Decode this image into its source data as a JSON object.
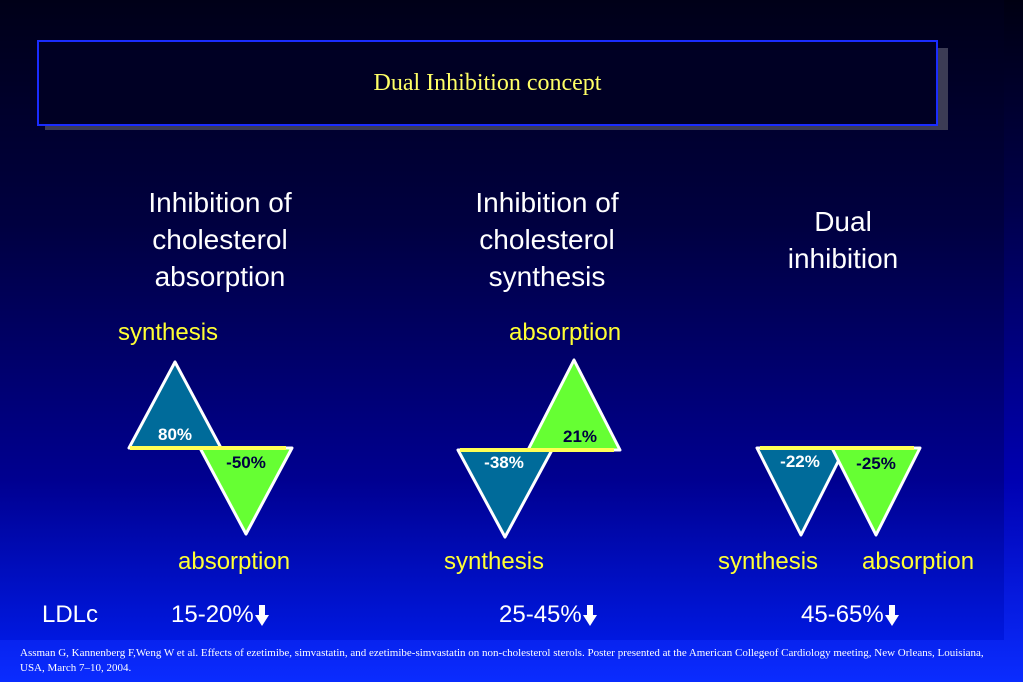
{
  "title": "Dual Inhibition concept",
  "colors": {
    "teal": "#006b9a",
    "green": "#66ff33",
    "baseline": "#ffff55",
    "outline": "#ffffff",
    "accent_text": "#ffff33"
  },
  "panels": [
    {
      "heading": "Inhibition of\ncholesterol\nabsorption",
      "top_label": "synthesis",
      "bottom_label": "absorption",
      "up_value": "80%",
      "down_value": "-50%",
      "ldlc": "15-20%"
    },
    {
      "heading": "Inhibition of\ncholesterol\nsynthesis",
      "top_label": "absorption",
      "bottom_label": "synthesis",
      "up_value": "21%",
      "down_value": "-38%",
      "ldlc": "25-45%"
    },
    {
      "heading": "Dual\ninhibition",
      "bottom_label_1": "synthesis",
      "bottom_label_2": "absorption",
      "down_value_1": "-22%",
      "down_value_2": "-25%",
      "ldlc": "45-65%"
    }
  ],
  "ldlc_label": "LDLc",
  "footnote": "Assman G, Kannenberg F,Weng W et al. Effects of ezetimibe, simvastatin, and ezetimibe-simvastatin on non-cholesterol sterols. Poster presented at the American Collegeof Cardiology meeting, New Orleans, Louisiana, USA, March 7–10, 2004."
}
